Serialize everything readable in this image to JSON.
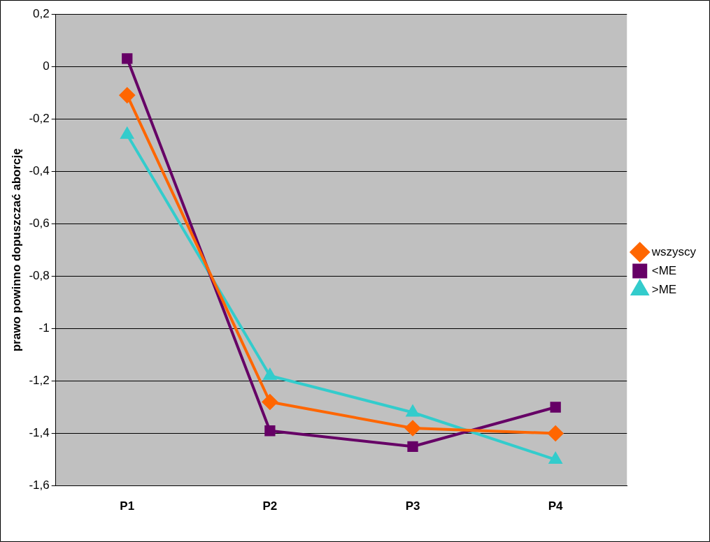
{
  "chart_data": {
    "type": "line",
    "ylabel": "prawo powinno dopuszczać aborcję",
    "categories": [
      "P1",
      "P2",
      "P3",
      "P4"
    ],
    "series": [
      {
        "name": "wszyscy",
        "color": "#ff6600",
        "marker": "diamond",
        "values": [
          -0.11,
          -1.28,
          -1.38,
          -1.4
        ]
      },
      {
        "name": "<ME",
        "color": "#660066",
        "marker": "square",
        "values": [
          0.03,
          -1.39,
          -1.45,
          -1.3
        ]
      },
      {
        "name": ">ME",
        "color": "#33cccc",
        "marker": "triangle",
        "values": [
          -0.26,
          -1.18,
          -1.32,
          -1.5
        ]
      }
    ],
    "ylim": [
      -1.6,
      0.2
    ],
    "yticks": [
      {
        "value": -1.6,
        "label": "-1,6"
      },
      {
        "value": -1.4,
        "label": "-1,4"
      },
      {
        "value": -1.2,
        "label": "-1,2"
      },
      -1,
      {
        "value": -0.8,
        "label": "-0,8"
      },
      {
        "value": -0.6,
        "label": "-0,6"
      },
      {
        "value": -0.4,
        "label": "-0,4"
      },
      {
        "value": -0.2,
        "label": "-0,2"
      },
      0,
      {
        "value": 0.2,
        "label": "0,2"
      }
    ],
    "grid": "y",
    "line_style": "solid",
    "legend": "right"
  }
}
